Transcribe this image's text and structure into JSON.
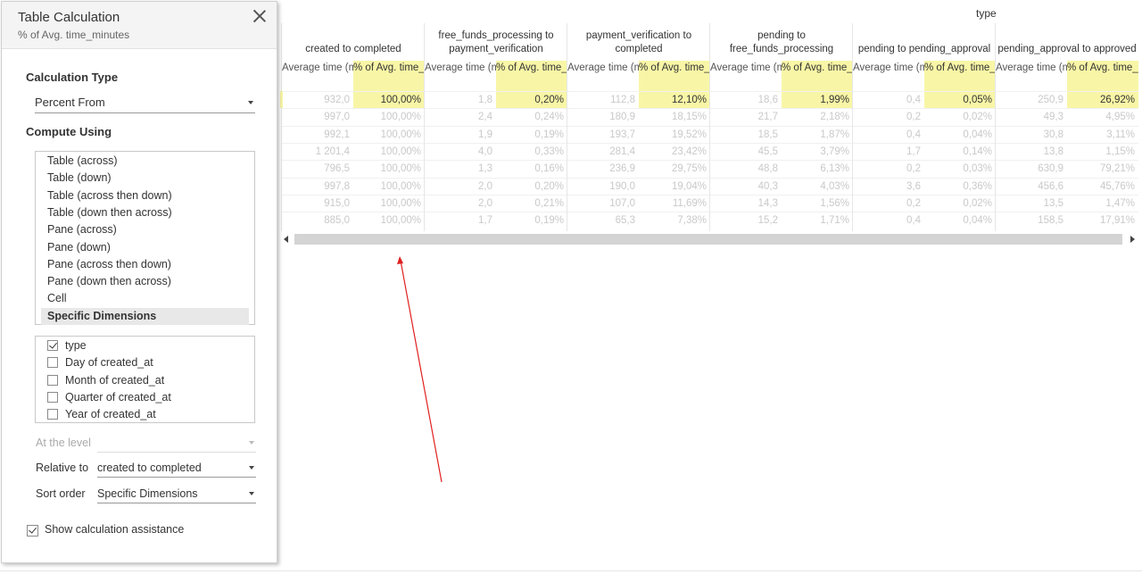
{
  "dialog": {
    "title": "Table Calculation",
    "subtitle": "% of Avg. time_minutes",
    "calc_type_label": "Calculation Type",
    "calc_type_value": "Percent From",
    "compute_using_label": "Compute Using",
    "compute_options": [
      "Table (across)",
      "Table (down)",
      "Table (across then down)",
      "Table (down then across)",
      "Pane (across)",
      "Pane (down)",
      "Pane (across then down)",
      "Pane (down then across)",
      "Cell",
      "Specific Dimensions"
    ],
    "selected_option": "Specific Dimensions",
    "dimensions": [
      {
        "label": "type",
        "checked": true
      },
      {
        "label": "Day of created_at",
        "checked": false
      },
      {
        "label": "Month of created_at",
        "checked": false
      },
      {
        "label": "Quarter of created_at",
        "checked": false
      },
      {
        "label": "Year of created_at",
        "checked": false
      }
    ],
    "at_level_label": "At the level",
    "at_level_value": "",
    "relative_to_label": "Relative to",
    "relative_to_value": "created to completed",
    "sort_order_label": "Sort order",
    "sort_order_value": "Specific Dimensions",
    "show_assist_label": "Show calculation assistance",
    "show_assist_checked": true
  },
  "table": {
    "header_title": "type",
    "groups": [
      {
        "name": "created to completed"
      },
      {
        "name": "free_funds_processing to payment_verification"
      },
      {
        "name": "payment_verification to completed"
      },
      {
        "name": "pending to free_funds_processing"
      },
      {
        "name": "pending to pending_approval"
      },
      {
        "name": "pending_approval to approved"
      }
    ],
    "sub_headers": {
      "avg": "Average time (minutes)",
      "pct": "% of Avg. time_minut.."
    },
    "rows": [
      [
        [
          "932,0",
          "100,00%"
        ],
        [
          "1,8",
          "0,20%"
        ],
        [
          "112,8",
          "12,10%"
        ],
        [
          "18,6",
          "1,99%"
        ],
        [
          "0,4",
          "0,05%"
        ],
        [
          "250,9",
          "26,92%"
        ]
      ],
      [
        [
          "997,0",
          "100,00%"
        ],
        [
          "2,4",
          "0,24%"
        ],
        [
          "180,9",
          "18,15%"
        ],
        [
          "21,7",
          "2,18%"
        ],
        [
          "0,2",
          "0,02%"
        ],
        [
          "49,3",
          "4,95%"
        ]
      ],
      [
        [
          "992,1",
          "100,00%"
        ],
        [
          "1,9",
          "0,19%"
        ],
        [
          "193,7",
          "19,52%"
        ],
        [
          "18,5",
          "1,87%"
        ],
        [
          "0,4",
          "0,04%"
        ],
        [
          "30,8",
          "3,11%"
        ]
      ],
      [
        [
          "1 201,4",
          "100,00%"
        ],
        [
          "4,0",
          "0,33%"
        ],
        [
          "281,4",
          "23,42%"
        ],
        [
          "45,5",
          "3,79%"
        ],
        [
          "1,7",
          "0,14%"
        ],
        [
          "13,8",
          "1,15%"
        ]
      ],
      [
        [
          "796,5",
          "100,00%"
        ],
        [
          "1,3",
          "0,16%"
        ],
        [
          "236,9",
          "29,75%"
        ],
        [
          "48,8",
          "6,13%"
        ],
        [
          "0,2",
          "0,03%"
        ],
        [
          "630,9",
          "79,21%"
        ]
      ],
      [
        [
          "997,8",
          "100,00%"
        ],
        [
          "2,0",
          "0,20%"
        ],
        [
          "190,0",
          "19,04%"
        ],
        [
          "40,3",
          "4,03%"
        ],
        [
          "3,6",
          "0,36%"
        ],
        [
          "456,6",
          "45,76%"
        ]
      ],
      [
        [
          "915,0",
          "100,00%"
        ],
        [
          "2,0",
          "0,21%"
        ],
        [
          "107,0",
          "11,69%"
        ],
        [
          "14,3",
          "1,56%"
        ],
        [
          "0,2",
          "0,02%"
        ],
        [
          "13,5",
          "1,47%"
        ]
      ],
      [
        [
          "885,0",
          "100,00%"
        ],
        [
          "1,7",
          "0,19%"
        ],
        [
          "65,3",
          "7,38%"
        ],
        [
          "15,2",
          "1,71%"
        ],
        [
          "0,4",
          "0,04%"
        ],
        [
          "158,5",
          "17,91%"
        ]
      ]
    ]
  },
  "colors": {
    "highlight": "#f8f6a6",
    "annotation": "#e02020"
  }
}
